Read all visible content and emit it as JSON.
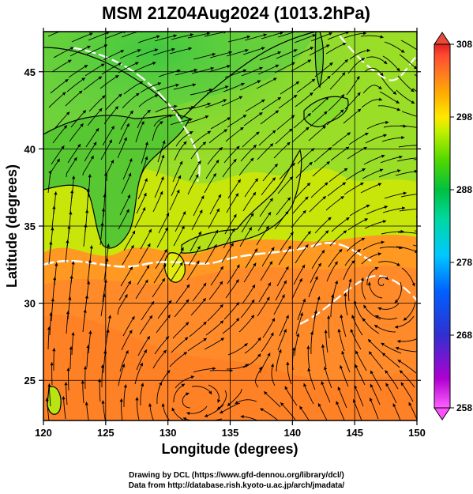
{
  "title": "MSM 21Z04Aug2024 (1013.2hPa)",
  "x_axis": {
    "label": "Longitude (degrees)",
    "range": [
      120,
      150
    ],
    "ticks": [
      "120",
      "125",
      "130",
      "135",
      "140",
      "145",
      "150"
    ]
  },
  "y_axis": {
    "label": "Latitude  (degrees)",
    "range": [
      22.4,
      47.6
    ],
    "ticks": [
      "25",
      "30",
      "35",
      "40",
      "45"
    ]
  },
  "colorbar": {
    "range": [
      258,
      308
    ],
    "ticks": [
      "308",
      "298",
      "288",
      "278",
      "268",
      "258"
    ],
    "colors": [
      "#ff60ff",
      "#b000d0",
      "#3030d0",
      "#0060ff",
      "#00c8ff",
      "#00d8a0",
      "#00c040",
      "#50d800",
      "#c0f000",
      "#ffe800",
      "#ffb000",
      "#ff7a20",
      "#ff4a30",
      "#e02020"
    ]
  },
  "field_colors": {
    "warm_ocean": "#ff8a2a",
    "subtropical": "#ff9b20",
    "land_warm": "#c8e60a",
    "land_cool": "#64d21e",
    "north_cool": "#7fd63c"
  },
  "credits": {
    "line1": "Drawing by DCL (https://www.gfd-dennou.org/library/dcl/)",
    "line2": "Data from http://database.rish.kyoto-u.ac.jp/arch/jmadata/"
  }
}
